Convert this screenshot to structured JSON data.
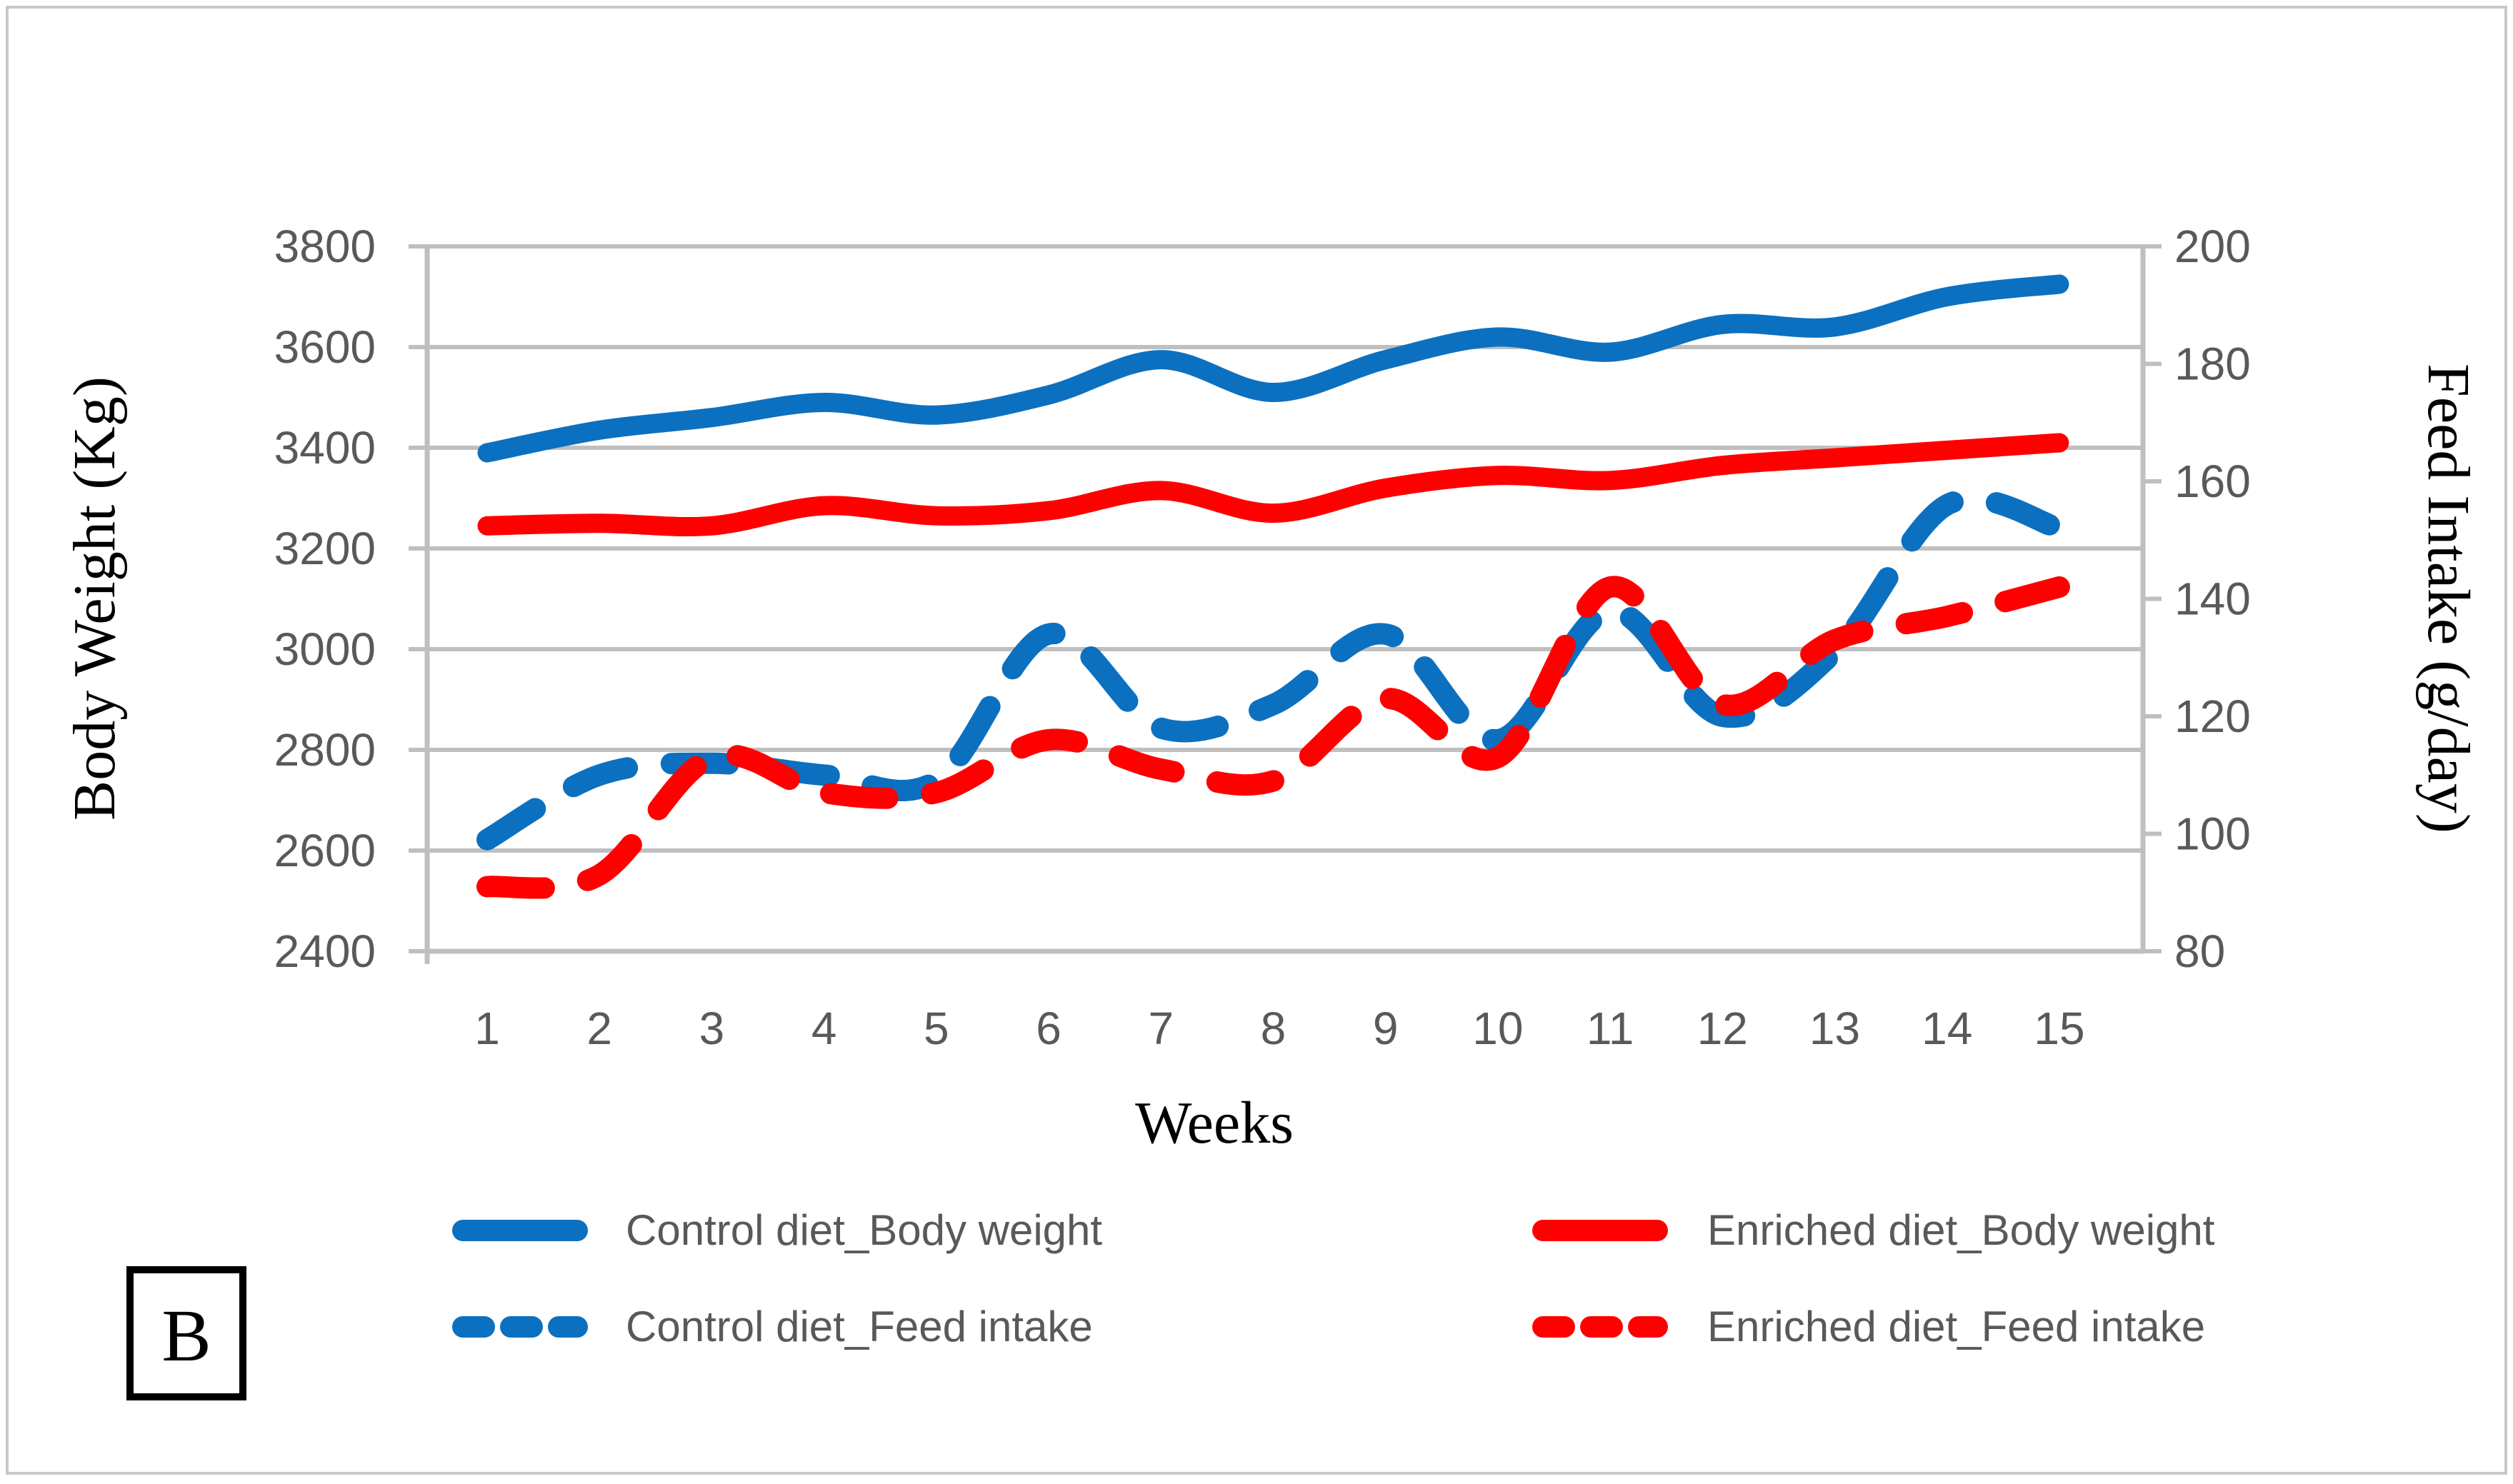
{
  "figure": {
    "panel_label": "B"
  },
  "colors": {
    "blue_series": "#0C70C0",
    "red_series": "#FF0000",
    "gridline": "#BFBFBF",
    "axis_line": "#BFBFBF",
    "tick_label": "#595959",
    "legend_text": "#595959",
    "axis_title": "#000000",
    "figure_border": "#C8C8C8",
    "panel_box_border": "#000000",
    "background": "#FFFFFF"
  },
  "chart_data": {
    "type": "line",
    "x": [
      1,
      2,
      3,
      4,
      5,
      6,
      7,
      8,
      9,
      10,
      11,
      12,
      13,
      14,
      15
    ],
    "xlabel": "Weeks",
    "ylabel_left": "Body Weight (Kg)",
    "ylabel_right": "Feed Intake (g/day)",
    "ylim_left": [
      2400,
      3800
    ],
    "ylim_right": [
      80,
      200
    ],
    "yticks_left": [
      3800,
      3600,
      3400,
      3200,
      3000,
      2800,
      2600,
      2400
    ],
    "yticks_right": [
      200,
      180,
      160,
      140,
      120,
      100,
      80
    ],
    "grid": "horizontal",
    "legend_position": "bottom-two-columns",
    "line_style_note": "smoothed lines, body weight solid, feed intake dashed",
    "series": [
      {
        "name": "Control diet_Body weight",
        "axis": "left",
        "style": "solid",
        "color": "#0C70C0",
        "values": [
          3390,
          3435,
          3460,
          3490,
          3465,
          3505,
          3575,
          3510,
          3575,
          3620,
          3590,
          3645,
          3640,
          3700,
          3725
        ]
      },
      {
        "name": "Enriched diet_Body weight",
        "axis": "left",
        "style": "solid",
        "color": "#FF0000",
        "values": [
          3245,
          3250,
          3245,
          3285,
          3265,
          3275,
          3315,
          3270,
          3320,
          3345,
          3335,
          3365,
          3380,
          3395,
          3410
        ]
      },
      {
        "name": "Control diet_Feed intake",
        "axis": "right",
        "style": "dashed",
        "color": "#0C70C0",
        "values": [
          99,
          110,
          112,
          110,
          109,
          134,
          118,
          122,
          134,
          116,
          138,
          120,
          131,
          156,
          152
        ]
      },
      {
        "name": "Enriched diet_Feed intake",
        "axis": "right",
        "style": "dashed",
        "color": "#FF0000",
        "values": [
          91,
          93,
          113,
          107,
          107,
          116,
          111,
          109,
          123,
          113,
          142,
          122,
          133,
          137,
          142
        ]
      }
    ]
  },
  "legend": {
    "items": [
      {
        "label": "Control diet_Body weight",
        "style": "solid",
        "color": "#0C70C0"
      },
      {
        "label": "Control diet_Feed intake",
        "style": "dashed",
        "color": "#0C70C0"
      },
      {
        "label": "Enriched diet_Body weight",
        "style": "solid",
        "color": "#FF0000"
      },
      {
        "label": "Enriched diet_Feed intake",
        "style": "dashed",
        "color": "#FF0000"
      }
    ]
  }
}
